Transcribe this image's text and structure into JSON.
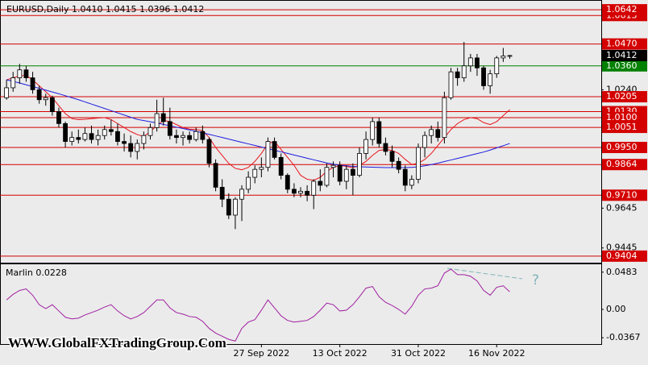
{
  "chart_data": [
    {
      "type": "candlestick",
      "title": "EURUSD,Daily  1.0410 1.0415 1.0396 1.0412",
      "open": [
        1.02,
        1.025,
        1.03,
        1.034,
        1.03,
        1.024,
        1.019,
        1.02,
        1.013,
        1.007,
        0.998,
        1.0,
        0.999,
        1.002,
        0.999,
        1.001,
        1.004,
        1.003,
        0.998,
        0.997,
        0.993,
        0.997,
        1.001,
        1.005,
        1.012,
        1.008,
        1.001,
        1.0,
        1.001,
        0.999,
        1.003,
        0.999,
        0.987,
        0.975,
        0.969,
        0.961,
        0.969,
        0.974,
        0.98,
        0.984,
        0.985,
        0.998,
        0.99,
        0.981,
        0.974,
        0.972,
        0.973,
        0.971,
        0.978,
        0.976,
        0.985,
        0.986,
        0.978,
        0.984,
        0.981,
        0.992,
        0.999,
        1.008,
        0.997,
        0.993,
        0.988,
        0.984,
        0.976,
        0.979,
        0.995,
        1.001,
        1.004,
        1.0,
        1.02,
        1.033,
        1.03,
        1.036,
        1.04,
        1.035,
        1.026,
        1.032,
        1.04,
        1.041
      ],
      "high": [
        1.029,
        1.033,
        1.037,
        1.036,
        1.033,
        1.026,
        1.022,
        1.021,
        1.015,
        1.008,
        1.003,
        1.004,
        1.005,
        1.006,
        1.004,
        1.006,
        1.009,
        1.007,
        1.002,
        1.001,
        0.999,
        1.003,
        1.007,
        1.019,
        1.02,
        1.015,
        1.004,
        1.003,
        1.003,
        1.005,
        1.006,
        1.0,
        0.989,
        0.979,
        0.972,
        0.97,
        0.976,
        0.983,
        0.986,
        0.99,
        1.0,
        1.0,
        0.992,
        0.982,
        0.977,
        0.975,
        0.976,
        0.979,
        0.984,
        0.987,
        0.988,
        0.988,
        0.986,
        0.987,
        0.995,
        1.003,
        1.01,
        1.01,
        1.0,
        0.996,
        0.99,
        0.986,
        0.981,
        0.997,
        1.003,
        1.006,
        1.008,
        1.023,
        1.035,
        1.035,
        1.048,
        1.042,
        1.042,
        1.036,
        1.034,
        1.041,
        1.045,
        1.0415
      ],
      "low": [
        1.019,
        1.023,
        1.027,
        1.028,
        1.022,
        1.017,
        1.016,
        1.011,
        1.005,
        0.995,
        0.996,
        0.997,
        0.998,
        0.997,
        0.996,
        0.999,
        1.001,
        0.996,
        0.993,
        0.99,
        0.989,
        0.994,
        0.999,
        1.003,
        1.006,
        0.999,
        0.997,
        0.996,
        0.997,
        0.998,
        0.997,
        0.985,
        0.973,
        0.965,
        0.959,
        0.954,
        0.958,
        0.972,
        0.977,
        0.98,
        0.983,
        0.989,
        0.979,
        0.972,
        0.97,
        0.97,
        0.968,
        0.964,
        0.973,
        0.975,
        0.98,
        0.976,
        0.974,
        0.971,
        0.98,
        0.989,
        0.996,
        0.995,
        0.991,
        0.985,
        0.982,
        0.973,
        0.974,
        0.977,
        0.99,
        0.997,
        0.998,
        0.997,
        1.019,
        1.026,
        1.028,
        1.033,
        1.031,
        1.024,
        1.022,
        1.03,
        1.038,
        1.0396
      ],
      "close": [
        1.025,
        1.03,
        1.034,
        1.03,
        1.024,
        1.019,
        1.02,
        1.013,
        1.007,
        0.998,
        1.0,
        0.999,
        1.002,
        0.999,
        1.001,
        1.004,
        1.003,
        0.998,
        0.997,
        0.993,
        0.997,
        1.001,
        1.005,
        1.012,
        1.008,
        1.001,
        1.0,
        1.001,
        0.999,
        1.003,
        0.999,
        0.987,
        0.975,
        0.969,
        0.961,
        0.969,
        0.974,
        0.98,
        0.984,
        0.985,
        0.998,
        0.99,
        0.981,
        0.974,
        0.972,
        0.973,
        0.971,
        0.978,
        0.976,
        0.985,
        0.986,
        0.978,
        0.984,
        0.981,
        0.992,
        0.999,
        1.008,
        0.997,
        0.993,
        0.988,
        0.984,
        0.976,
        0.979,
        0.995,
        1.001,
        1.004,
        1.0,
        1.02,
        1.033,
        1.03,
        1.036,
        1.04,
        1.035,
        1.026,
        1.032,
        1.04,
        1.041,
        1.0412
      ],
      "up_color": "#ffffff",
      "down_color": "#000000",
      "lines": [
        {
          "color": "#e8141b",
          "values": [
            1.029,
            1.03,
            1.031,
            1.0312,
            1.029,
            1.026,
            1.023,
            1.02,
            1.016,
            1.012,
            1.0095,
            1.009,
            1.0092,
            1.0095,
            1.0098,
            1.01,
            1.009,
            1.007,
            1.005,
            1.003,
            1.0015,
            1.0005,
            1.003,
            1.006,
            1.0085,
            1.008,
            1.0065,
            1.005,
            1.0042,
            1.004,
            1.0035,
            1.0,
            0.995,
            0.991,
            0.987,
            0.9845,
            0.9838,
            0.985,
            0.988,
            0.992,
            0.997,
            0.998,
            0.994,
            0.99,
            0.986,
            0.981,
            0.979,
            0.9785,
            0.98,
            0.983,
            0.985,
            0.986,
            0.9855,
            0.9848,
            0.986,
            0.988,
            0.991,
            0.9935,
            0.994,
            0.9935,
            0.992,
            0.989,
            0.9865,
            0.987,
            0.989,
            0.992,
            0.996,
            1.0,
            1.004,
            1.007,
            1.009,
            1.01,
            1.0095,
            1.0075,
            1.0065,
            1.008,
            1.011,
            1.014
          ]
        },
        {
          "color": "#1c1ce0",
          "values": [
            1.029,
            1.0282,
            1.0274,
            1.0265,
            1.0256,
            1.0247,
            1.0238,
            1.0229,
            1.022,
            1.021,
            1.02,
            1.019,
            1.0179,
            1.0168,
            1.0157,
            1.0146,
            1.0135,
            1.0124,
            1.0113,
            1.0102,
            1.0091,
            1.0085,
            1.0079,
            1.0073,
            1.0066,
            1.0059,
            1.0052,
            1.0045,
            1.0038,
            1.0031,
            1.0024,
            1.0016,
            1.0008,
            1.0,
            0.9992,
            0.9984,
            0.9976,
            0.9968,
            0.996,
            0.9952,
            0.9944,
            0.9936,
            0.9928,
            0.992,
            0.9912,
            0.9904,
            0.9896,
            0.9888,
            0.988,
            0.9872,
            0.9866,
            0.9861,
            0.9858,
            0.9855,
            0.9853,
            0.9852,
            0.9851,
            0.985,
            0.9849,
            0.9849,
            0.9849,
            0.9849,
            0.985,
            0.9853,
            0.9858,
            0.9864,
            0.9871,
            0.9879,
            0.9887,
            0.9895,
            0.9903,
            0.9911,
            0.9919,
            0.9927,
            0.9937,
            0.9948,
            0.9959,
            0.997
          ]
        }
      ],
      "levels": [
        1.0613,
        {
          "value": 1.013,
          "label": "1.0130"
        },
        1.0642,
        {
          "value": 1.047,
          "label": "1.0470"
        },
        {
          "value": 1.036,
          "label": "1.0360"
        },
        1.0205,
        {
          "value": 1.01,
          "label": "1.0100"
        },
        1.0051,
        {
          "value": 0.995,
          "label": "0.9950"
        },
        0.9864,
        {
          "value": 0.971,
          "label": "0.9710"
        },
        0.9404
      ],
      "level_colors": [
        "#d40000",
        "#d40000",
        "#d40000",
        "#d40000",
        "#008000",
        "#d40000",
        "#d40000",
        "#d40000",
        "#d40000",
        "#d40000",
        "#d40000",
        "#d40000"
      ],
      "last_price": 1.0412,
      "last_price_color": "#000000",
      "ylim": [
        0.9371,
        1.0687
      ],
      "yticks": [
        {
          "value": 1.024,
          "label": "1.0240"
        },
        0.9645,
        0.9445
      ],
      "xlim": [
        -1,
        91
      ],
      "xticks": [
        {
          "value": 39,
          "label": "27 Sep 2022"
        },
        {
          "value": 51,
          "label": "13 Oct 2022"
        },
        {
          "value": 63,
          "label": "31 Oct 2022"
        },
        {
          "value": 75,
          "label": "16 Nov 2022"
        }
      ],
      "watermark": "WWW.GlobalFXTradingGroup.Com"
    },
    {
      "type": "line",
      "title": "Marlin 0.0228",
      "color": "#a020a0",
      "values": [
        0.0123,
        0.0195,
        0.0246,
        0.0266,
        0.0184,
        0.0061,
        0.001,
        0.0061,
        -0.002,
        -0.0102,
        -0.0123,
        -0.0113,
        -0.0072,
        -0.0041,
        -0.001,
        0.0031,
        0.0061,
        -0.002,
        -0.0082,
        -0.0123,
        -0.0092,
        -0.0041,
        0.0041,
        0.0123,
        0.0123,
        0.002,
        -0.0041,
        -0.0061,
        -0.0092,
        -0.0102,
        -0.0154,
        -0.0246,
        -0.0307,
        -0.0348,
        -0.0389,
        -0.041,
        -0.0246,
        -0.0164,
        -0.0133,
        -0.001,
        0.0123,
        0.002,
        -0.0082,
        -0.0143,
        -0.0164,
        -0.0154,
        -0.0143,
        -0.0092,
        -0.001,
        0.0082,
        0.0061,
        -0.002,
        -0.001,
        0.0061,
        0.0164,
        0.0276,
        0.0297,
        0.0164,
        0.0092,
        0.0051,
        0.0,
        -0.0061,
        0.0041,
        0.0184,
        0.0266,
        0.0276,
        0.0307,
        0.0471,
        0.0522,
        0.0451,
        0.0451,
        0.043,
        0.0369,
        0.0246,
        0.0184,
        0.0287,
        0.0307,
        0.0228
      ],
      "ylim": [
        -0.0449,
        0.0585
      ],
      "yticks": [
        0.0483,
        {
          "value": 0,
          "label": "0.00"
        },
        -0.0367
      ],
      "xlim": [
        -1,
        91
      ],
      "annotation": "?"
    }
  ]
}
